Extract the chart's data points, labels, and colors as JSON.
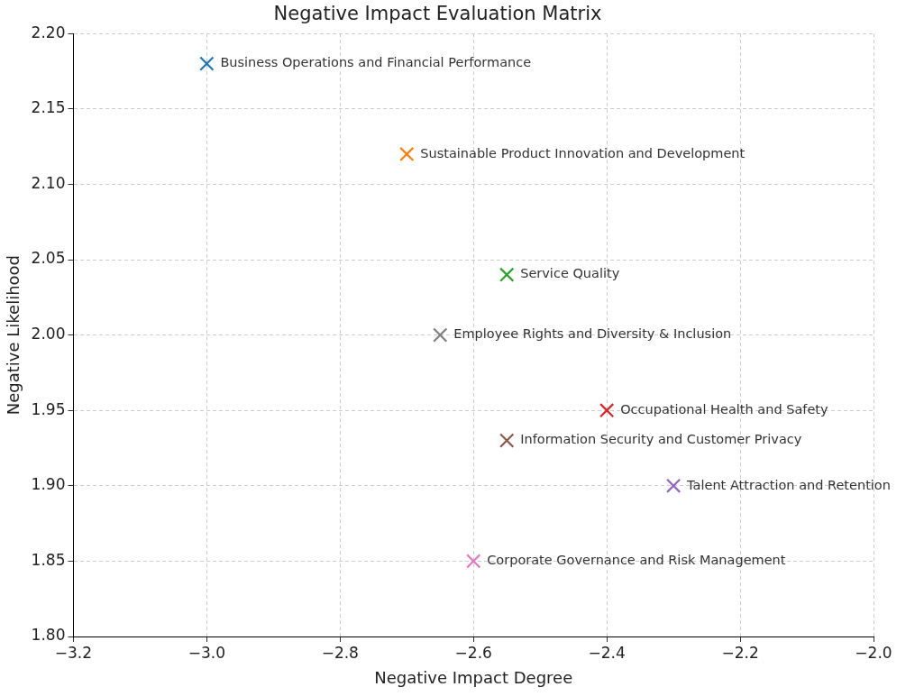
{
  "chart_data": {
    "type": "scatter",
    "title": "Negative Impact Evaluation Matrix",
    "xlabel": "Negative Impact Degree",
    "ylabel": "Negative Likelihood",
    "xlim": [
      -3.2,
      -2.0
    ],
    "ylim": [
      1.8,
      2.2
    ],
    "xticks": [
      {
        "value": -3.2,
        "label": "−3.2"
      },
      {
        "value": -3.0,
        "label": "−3.0"
      },
      {
        "value": -2.8,
        "label": "−2.8"
      },
      {
        "value": -2.6,
        "label": "−2.6"
      },
      {
        "value": -2.4,
        "label": "−2.4"
      },
      {
        "value": -2.2,
        "label": "−2.2"
      },
      {
        "value": -2.0,
        "label": "−2.0"
      }
    ],
    "yticks": [
      {
        "value": 1.8,
        "label": "1.80"
      },
      {
        "value": 1.85,
        "label": "1.85"
      },
      {
        "value": 1.9,
        "label": "1.90"
      },
      {
        "value": 1.95,
        "label": "1.95"
      },
      {
        "value": 2.0,
        "label": "2.00"
      },
      {
        "value": 2.05,
        "label": "2.05"
      },
      {
        "value": 2.1,
        "label": "2.10"
      },
      {
        "value": 2.15,
        "label": "2.15"
      },
      {
        "value": 2.2,
        "label": "2.20"
      }
    ],
    "grid": true,
    "legend": false,
    "marker": "cross",
    "series": [
      {
        "name": "Business Operations and Financial Performance",
        "color": "#1f77b4",
        "x": [
          -3.0
        ],
        "values": [
          2.18
        ]
      },
      {
        "name": "Sustainable Product Innovation and Development",
        "color": "#ff7f0e",
        "x": [
          -2.7
        ],
        "values": [
          2.12
        ]
      },
      {
        "name": "Service Quality",
        "color": "#2ca02c",
        "x": [
          -2.55
        ],
        "values": [
          2.04
        ]
      },
      {
        "name": "Employee Rights and Diversity & Inclusion",
        "color": "#7f7f7f",
        "x": [
          -2.65
        ],
        "values": [
          2.0
        ]
      },
      {
        "name": "Occupational Health and Safety",
        "color": "#d62728",
        "x": [
          -2.4
        ],
        "values": [
          1.95
        ]
      },
      {
        "name": "Information Security and Customer Privacy",
        "color": "#8c564b",
        "x": [
          -2.55
        ],
        "values": [
          1.93
        ]
      },
      {
        "name": "Talent Attraction and Retention",
        "color": "#9467bd",
        "x": [
          -2.3
        ],
        "values": [
          1.9
        ]
      },
      {
        "name": "Corporate Governance and Risk Management",
        "color": "#e377c2",
        "x": [
          -2.6
        ],
        "values": [
          1.85
        ]
      }
    ]
  }
}
